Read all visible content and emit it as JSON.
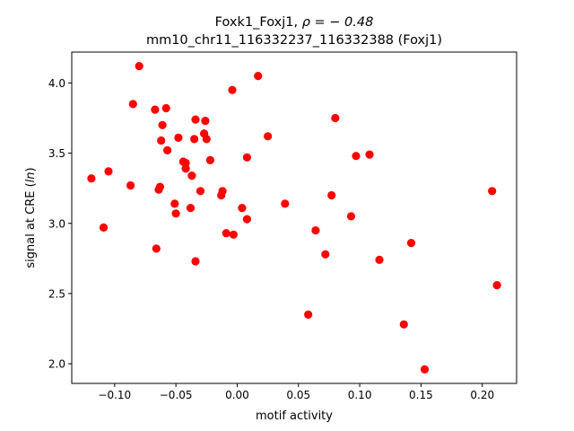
{
  "chart_data": {
    "type": "scatter",
    "title_line1_prefix": "Foxk1_Foxj1, ",
    "title_line1_rho": "ρ = − 0.48",
    "title_line2": "mm10_chr11_116332237_116332388 (Foxj1)",
    "xlabel": "motif activity",
    "ylabel_prefix": "signal at CRE (",
    "ylabel_italic": "ln",
    "ylabel_suffix": ")",
    "xlim": [
      -0.135,
      0.228
    ],
    "ylim": [
      1.86,
      4.22
    ],
    "xticks": [
      -0.1,
      -0.05,
      0.0,
      0.05,
      0.1,
      0.15,
      0.2
    ],
    "xtick_labels": [
      "−0.10",
      "−0.05",
      "0.00",
      "0.05",
      "0.10",
      "0.15",
      "0.20"
    ],
    "yticks": [
      2.0,
      2.5,
      3.0,
      3.5,
      4.0
    ],
    "ytick_labels": [
      "2.0",
      "2.5",
      "3.0",
      "3.5",
      "4.0"
    ],
    "grid": false,
    "marker_color": "#ff0000",
    "points": [
      {
        "x": -0.119,
        "y": 3.32
      },
      {
        "x": -0.109,
        "y": 2.97
      },
      {
        "x": -0.105,
        "y": 3.37
      },
      {
        "x": -0.087,
        "y": 3.27
      },
      {
        "x": -0.085,
        "y": 3.85
      },
      {
        "x": -0.08,
        "y": 4.12
      },
      {
        "x": -0.067,
        "y": 3.81
      },
      {
        "x": -0.066,
        "y": 2.82
      },
      {
        "x": -0.064,
        "y": 3.24
      },
      {
        "x": -0.063,
        "y": 3.26
      },
      {
        "x": -0.062,
        "y": 3.59
      },
      {
        "x": -0.061,
        "y": 3.7
      },
      {
        "x": -0.058,
        "y": 3.82
      },
      {
        "x": -0.057,
        "y": 3.52
      },
      {
        "x": -0.051,
        "y": 3.14
      },
      {
        "x": -0.05,
        "y": 3.07
      },
      {
        "x": -0.048,
        "y": 3.61
      },
      {
        "x": -0.044,
        "y": 3.44
      },
      {
        "x": -0.042,
        "y": 3.43
      },
      {
        "x": -0.042,
        "y": 3.39
      },
      {
        "x": -0.038,
        "y": 3.11
      },
      {
        "x": -0.037,
        "y": 3.34
      },
      {
        "x": -0.035,
        "y": 3.6
      },
      {
        "x": -0.034,
        "y": 3.74
      },
      {
        "x": -0.034,
        "y": 2.73
      },
      {
        "x": -0.03,
        "y": 3.23
      },
      {
        "x": -0.027,
        "y": 3.64
      },
      {
        "x": -0.026,
        "y": 3.73
      },
      {
        "x": -0.025,
        "y": 3.6
      },
      {
        "x": -0.022,
        "y": 3.45
      },
      {
        "x": -0.013,
        "y": 3.2
      },
      {
        "x": -0.012,
        "y": 3.23
      },
      {
        "x": -0.009,
        "y": 2.93
      },
      {
        "x": -0.004,
        "y": 3.95
      },
      {
        "x": -0.003,
        "y": 2.92
      },
      {
        "x": 0.004,
        "y": 3.11
      },
      {
        "x": 0.008,
        "y": 3.47
      },
      {
        "x": 0.008,
        "y": 3.03
      },
      {
        "x": 0.017,
        "y": 4.05
      },
      {
        "x": 0.025,
        "y": 3.62
      },
      {
        "x": 0.039,
        "y": 3.14
      },
      {
        "x": 0.058,
        "y": 2.35
      },
      {
        "x": 0.064,
        "y": 2.95
      },
      {
        "x": 0.072,
        "y": 2.78
      },
      {
        "x": 0.077,
        "y": 3.2
      },
      {
        "x": 0.08,
        "y": 3.75
      },
      {
        "x": 0.093,
        "y": 3.05
      },
      {
        "x": 0.097,
        "y": 3.48
      },
      {
        "x": 0.108,
        "y": 3.49
      },
      {
        "x": 0.116,
        "y": 2.74
      },
      {
        "x": 0.136,
        "y": 2.28
      },
      {
        "x": 0.142,
        "y": 2.86
      },
      {
        "x": 0.153,
        "y": 1.96
      },
      {
        "x": 0.208,
        "y": 3.23
      },
      {
        "x": 0.212,
        "y": 2.56
      }
    ]
  }
}
